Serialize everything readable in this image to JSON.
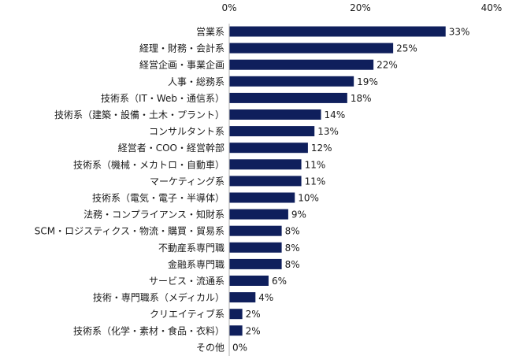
{
  "chart_data": {
    "type": "bar",
    "orientation": "horizontal",
    "categories": [
      "営業系",
      "経理・財務・会計系",
      "経営企画・事業企画",
      "人事・総務系",
      "技術系（IT・Web・通信系）",
      "技術系（建築・設備・土木・プラント）",
      "コンサルタント系",
      "経営者・COO・経営幹部",
      "技術系（機械・メカトロ・自動車）",
      "マーケティング系",
      "技術系（電気・電子・半導体）",
      "法務・コンプライアンス・知財系",
      "SCM・ロジスティクス・物流・購買・貿易系",
      "不動産系専門職",
      "金融系専門職",
      "サービス・流通系",
      "技術・専門職系（メディカル）",
      "クリエイティブ系",
      "技術系（化学・素材・食品・衣料）",
      "その他"
    ],
    "values": [
      33,
      25,
      22,
      19,
      18,
      14,
      13,
      12,
      11,
      11,
      10,
      9,
      8,
      8,
      8,
      6,
      4,
      2,
      2,
      0
    ],
    "value_labels": [
      "33%",
      "25%",
      "22%",
      "19%",
      "18%",
      "14%",
      "13%",
      "12%",
      "11%",
      "11%",
      "10%",
      "9%",
      "8%",
      "8%",
      "8%",
      "6%",
      "4%",
      "2%",
      "2%",
      "0%"
    ],
    "x_ticks": [
      0,
      20,
      40
    ],
    "x_tick_labels": [
      "0%",
      "20%",
      "40%"
    ],
    "xlim": [
      0,
      40
    ],
    "title": "",
    "xlabel": "",
    "ylabel": "",
    "grid": false,
    "legend": "none",
    "bar_color": "#0f1f5c",
    "axis_color": "#b0b0b0",
    "text_color": "#1a1a1a"
  }
}
